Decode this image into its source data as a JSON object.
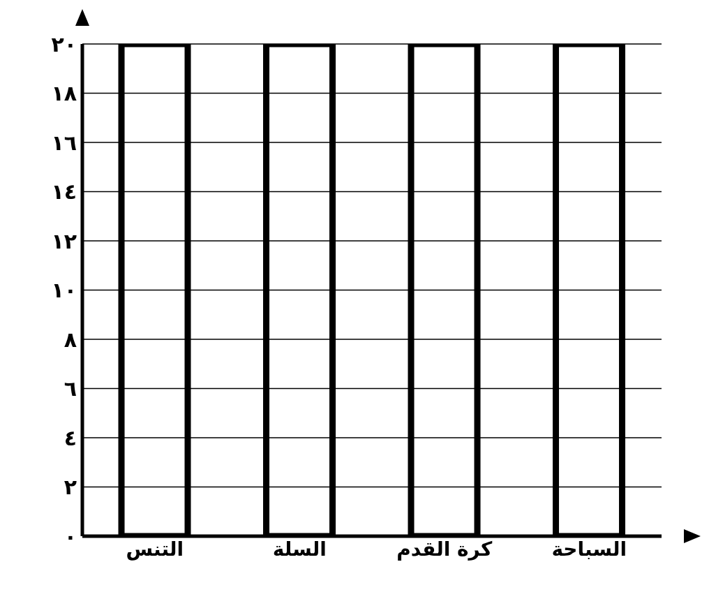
{
  "chart_data": {
    "type": "bar",
    "categories": [
      "التنس",
      "السلة",
      "كرة القدم",
      "السباحة"
    ],
    "values": [
      20,
      20,
      20,
      20
    ],
    "color": "#000000",
    "ylim": [
      0,
      20
    ],
    "yticks": [
      {
        "value": 0,
        "label": "٠"
      },
      {
        "value": 2,
        "label": "٢"
      },
      {
        "value": 4,
        "label": "٤"
      },
      {
        "value": 6,
        "label": "٦"
      },
      {
        "value": 8,
        "label": "٨"
      },
      {
        "value": 10,
        "label": "١٠"
      },
      {
        "value": 12,
        "label": "١٢"
      },
      {
        "value": 14,
        "label": "١٤"
      },
      {
        "value": 16,
        "label": "١٦"
      },
      {
        "value": 18,
        "label": "١٨"
      },
      {
        "value": 20,
        "label": "٢٠"
      }
    ],
    "grid": "y",
    "legend": false
  }
}
